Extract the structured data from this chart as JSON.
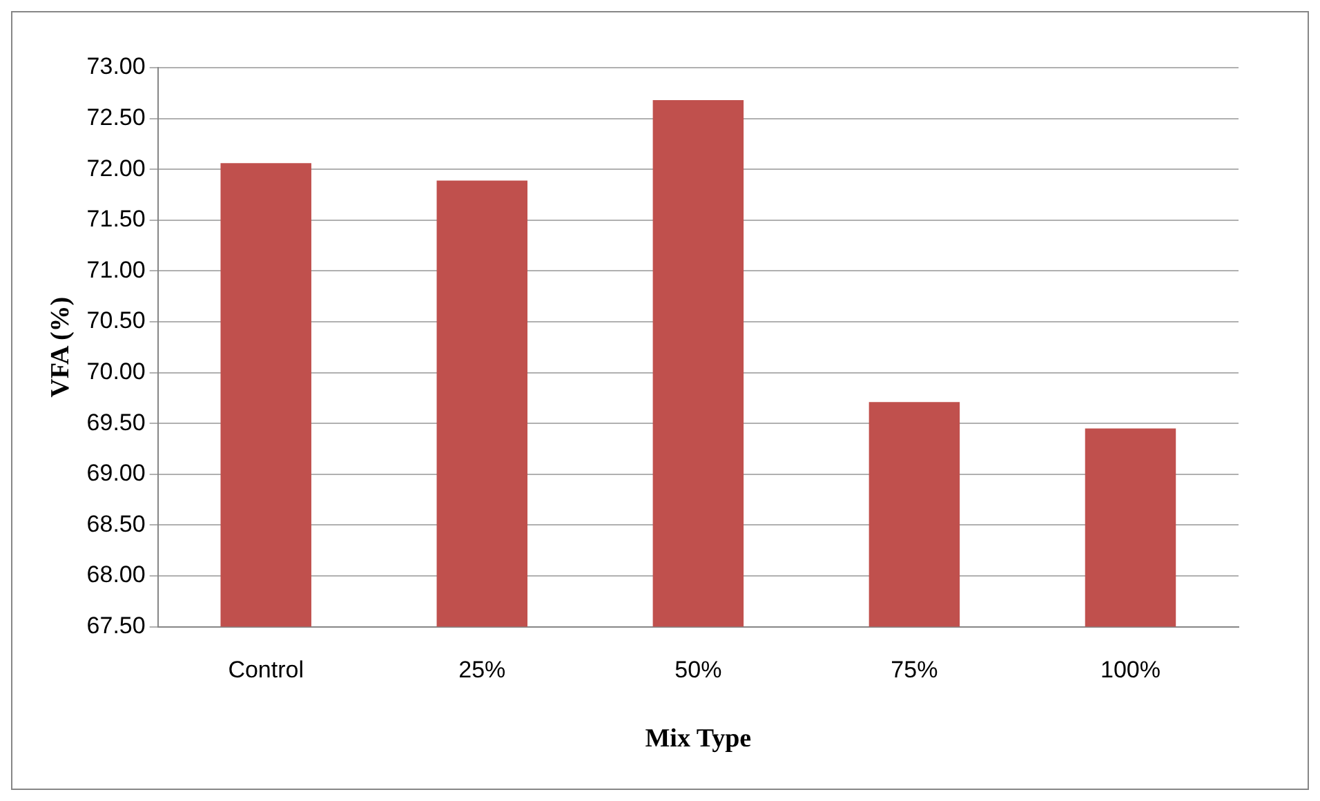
{
  "chart_data": {
    "type": "bar",
    "xlabel": "Mix Type",
    "ylabel": "VFA (%)",
    "categories": [
      "Control",
      "25%",
      "50%",
      "75%",
      "100%"
    ],
    "values": [
      72.06,
      71.89,
      72.68,
      69.71,
      69.45
    ],
    "color": "#c0504d",
    "ylim": [
      67.5,
      73
    ],
    "yticks": [
      {
        "value": 67.5,
        "label": "67.50"
      },
      {
        "value": 68,
        "label": "68.00"
      },
      {
        "value": 68.5,
        "label": "68.50"
      },
      {
        "value": 69,
        "label": "69.00"
      },
      {
        "value": 69.5,
        "label": "69.50"
      },
      {
        "value": 70,
        "label": "70.00"
      },
      {
        "value": 70.5,
        "label": "70.50"
      },
      {
        "value": 71,
        "label": "71.00"
      },
      {
        "value": 71.5,
        "label": "71.50"
      },
      {
        "value": 72,
        "label": "72.00"
      },
      {
        "value": 72.5,
        "label": "72.50"
      },
      {
        "value": 73,
        "label": "73.00"
      }
    ],
    "grid": "y",
    "legend": false
  }
}
